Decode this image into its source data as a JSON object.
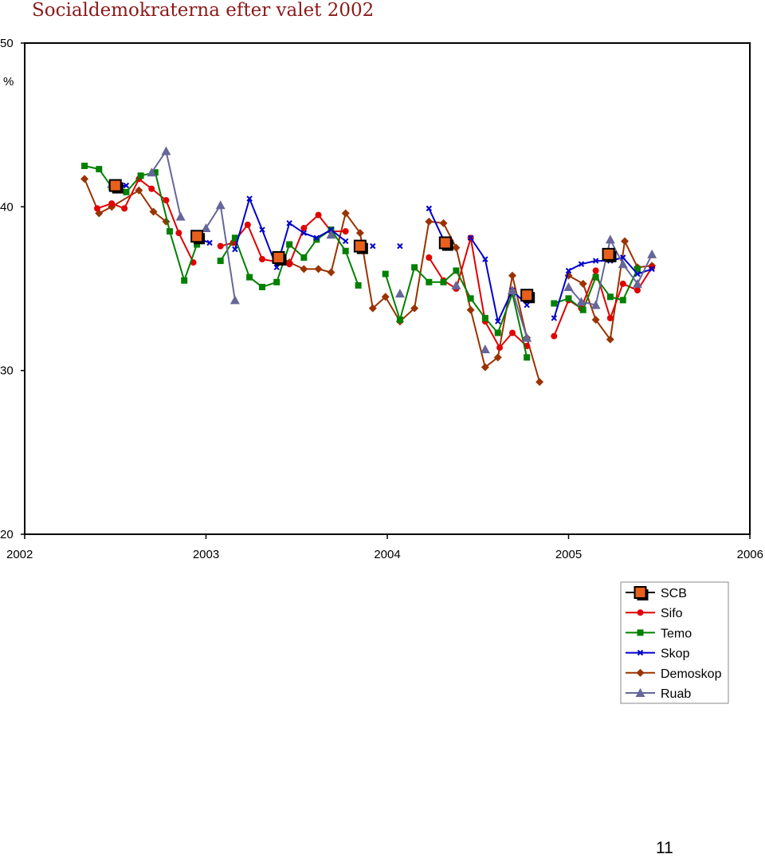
{
  "chart_data": {
    "type": "line",
    "title": "Socialdemokraterna efter valet 2002",
    "ylabel": "%",
    "xlabel": "",
    "ylim": [
      20,
      50
    ],
    "xlim": [
      2002,
      2006
    ],
    "yticks": [
      20,
      30,
      40,
      50
    ],
    "xticks": [
      2002,
      2003,
      2004,
      2005,
      2006
    ],
    "grid": false,
    "legend": "bottom-right",
    "series": [
      {
        "name": "SCB",
        "color": "#e8601c",
        "marker": "big-square",
        "points": [
          [
            2002.5,
            41.3
          ],
          [
            2002.95,
            38.2
          ],
          [
            2003.4,
            36.9
          ],
          [
            2003.85,
            37.6
          ],
          [
            2004.32,
            37.8
          ],
          [
            2004.77,
            34.6
          ],
          [
            2005.22,
            37.1
          ]
        ]
      },
      {
        "name": "Sifo",
        "color": "#e00000",
        "marker": "circle",
        "points": [
          [
            2002.4,
            39.9
          ],
          [
            2002.48,
            40.2
          ],
          [
            2002.55,
            39.9
          ],
          [
            2002.63,
            41.7
          ],
          [
            2002.7,
            41.1
          ],
          [
            2002.78,
            40.4
          ],
          [
            2002.85,
            38.4
          ],
          [
            2002.93,
            36.6
          ],
          [
            null,
            null
          ],
          [
            2003.08,
            37.6
          ],
          [
            2003.15,
            37.8
          ],
          [
            2003.23,
            38.9
          ],
          [
            2003.31,
            36.8
          ],
          [
            2003.46,
            36.5
          ],
          [
            2003.54,
            38.7
          ],
          [
            2003.62,
            39.5
          ],
          [
            2003.69,
            38.5
          ],
          [
            2003.77,
            38.5
          ],
          [
            null,
            null
          ],
          [
            2004.23,
            36.9
          ],
          [
            2004.31,
            35.5
          ],
          [
            2004.38,
            35.0
          ],
          [
            2004.46,
            38.1
          ],
          [
            2004.54,
            33.0
          ],
          [
            2004.62,
            31.4
          ],
          [
            2004.69,
            32.3
          ],
          [
            2004.77,
            31.5
          ],
          [
            null,
            null
          ],
          [
            2004.92,
            32.1
          ],
          [
            2005.0,
            34.3
          ],
          [
            2005.07,
            33.8
          ],
          [
            2005.15,
            36.1
          ],
          [
            2005.23,
            33.2
          ],
          [
            2005.3,
            35.3
          ],
          [
            2005.38,
            34.9
          ],
          [
            2005.46,
            36.3
          ]
        ]
      },
      {
        "name": "Temo",
        "color": "#008000",
        "marker": "square",
        "points": [
          [
            2002.33,
            42.5
          ],
          [
            2002.41,
            42.3
          ],
          [
            2002.48,
            41.2
          ],
          [
            2002.56,
            40.9
          ],
          [
            2002.64,
            41.9
          ],
          [
            2002.72,
            42.1
          ],
          [
            2002.8,
            38.5
          ],
          [
            2002.88,
            35.5
          ],
          [
            2002.95,
            37.7
          ],
          [
            null,
            null
          ],
          [
            2003.08,
            36.7
          ],
          [
            2003.16,
            38.1
          ],
          [
            2003.24,
            35.7
          ],
          [
            2003.31,
            35.1
          ],
          [
            2003.39,
            35.4
          ],
          [
            2003.46,
            37.7
          ],
          [
            2003.54,
            36.9
          ],
          [
            2003.61,
            38.0
          ],
          [
            2003.69,
            38.6
          ],
          [
            2003.77,
            37.3
          ],
          [
            2003.84,
            35.2
          ],
          [
            null,
            null
          ],
          [
            2003.99,
            35.9
          ],
          [
            2004.07,
            33.1
          ],
          [
            2004.15,
            36.3
          ],
          [
            2004.23,
            35.4
          ],
          [
            2004.31,
            35.4
          ],
          [
            2004.38,
            36.1
          ],
          [
            2004.46,
            34.4
          ],
          [
            2004.54,
            33.2
          ],
          [
            2004.61,
            32.3
          ],
          [
            2004.69,
            34.7
          ],
          [
            2004.77,
            30.8
          ],
          [
            null,
            null
          ],
          [
            2004.92,
            34.1
          ],
          [
            2005.0,
            34.4
          ],
          [
            2005.08,
            33.7
          ],
          [
            2005.15,
            35.7
          ],
          [
            2005.23,
            34.5
          ],
          [
            2005.3,
            34.3
          ],
          [
            2005.38,
            36.2
          ]
        ]
      },
      {
        "name": "Skop",
        "color": "#0000cc",
        "marker": "x",
        "points": [
          [
            2002.48,
            41.2
          ],
          [
            2002.56,
            41.3
          ],
          [
            null,
            null
          ],
          [
            2002.95,
            38.1
          ],
          [
            2003.02,
            37.8
          ],
          [
            null,
            null
          ],
          [
            2003.16,
            37.4
          ],
          [
            2003.24,
            40.5
          ],
          [
            2003.31,
            38.6
          ],
          [
            2003.39,
            36.3
          ],
          [
            2003.46,
            39.0
          ],
          [
            2003.54,
            38.4
          ],
          [
            2003.61,
            38.1
          ],
          [
            2003.69,
            38.6
          ],
          [
            2003.77,
            37.9
          ],
          [
            null,
            null
          ],
          [
            2003.92,
            37.6
          ],
          [
            null,
            null
          ],
          [
            2004.07,
            37.6
          ],
          [
            null,
            null
          ],
          [
            2004.23,
            39.9
          ],
          [
            2004.31,
            38.0
          ],
          [
            null,
            null
          ],
          [
            2004.46,
            38.1
          ],
          [
            2004.54,
            36.8
          ],
          [
            2004.61,
            33.0
          ],
          [
            2004.69,
            34.9
          ],
          [
            2004.77,
            34.0
          ],
          [
            null,
            null
          ],
          [
            2004.92,
            33.2
          ],
          [
            2005.0,
            36.1
          ],
          [
            2005.07,
            36.5
          ],
          [
            2005.15,
            36.7
          ],
          [
            2005.23,
            36.7
          ],
          [
            2005.3,
            36.9
          ],
          [
            2005.38,
            35.9
          ],
          [
            2005.46,
            36.2
          ]
        ]
      },
      {
        "name": "Demoskop",
        "color": "#993300",
        "marker": "diamond",
        "points": [
          [
            2002.33,
            41.7
          ],
          [
            2002.41,
            39.6
          ],
          [
            2002.48,
            40.0
          ],
          [
            2002.63,
            41.0
          ],
          [
            2002.71,
            39.7
          ],
          [
            2002.78,
            39.1
          ],
          [
            null,
            null
          ],
          [
            2003.43,
            36.7
          ],
          [
            2003.46,
            36.6
          ],
          [
            2003.54,
            36.2
          ],
          [
            2003.62,
            36.2
          ],
          [
            2003.69,
            36.0
          ],
          [
            2003.77,
            39.6
          ],
          [
            2003.85,
            38.4
          ],
          [
            2003.92,
            33.8
          ],
          [
            2003.99,
            34.5
          ],
          [
            2004.07,
            33.0
          ],
          [
            2004.15,
            33.8
          ],
          [
            2004.23,
            39.1
          ],
          [
            2004.31,
            39.0
          ],
          [
            2004.38,
            37.5
          ],
          [
            2004.46,
            33.7
          ],
          [
            2004.54,
            30.2
          ],
          [
            2004.61,
            30.8
          ],
          [
            2004.69,
            35.8
          ],
          [
            2004.77,
            32.0
          ],
          [
            2004.84,
            29.3
          ],
          [
            null,
            null
          ],
          [
            2005.0,
            35.8
          ],
          [
            2005.08,
            35.3
          ],
          [
            2005.15,
            33.1
          ],
          [
            2005.23,
            31.9
          ],
          [
            2005.31,
            37.9
          ],
          [
            2005.38,
            36.3
          ],
          [
            2005.46,
            36.4
          ]
        ]
      },
      {
        "name": "Ruab",
        "color": "#666699",
        "marker": "triangle",
        "points": [
          [
            2002.48,
            41.4
          ],
          [
            null,
            null
          ],
          [
            2002.7,
            42.1
          ],
          [
            2002.78,
            43.4
          ],
          [
            2002.86,
            39.4
          ],
          [
            null,
            null
          ],
          [
            2003.0,
            38.7
          ],
          [
            2003.08,
            40.1
          ],
          [
            2003.16,
            34.3
          ],
          [
            null,
            null
          ],
          [
            2003.69,
            38.3
          ],
          [
            null,
            null
          ],
          [
            2004.07,
            34.7
          ],
          [
            null,
            null
          ],
          [
            2004.38,
            35.2
          ],
          [
            null,
            null
          ],
          [
            2004.54,
            31.3
          ],
          [
            null,
            null
          ],
          [
            2004.69,
            34.9
          ],
          [
            2004.77,
            32.0
          ],
          [
            null,
            null
          ],
          [
            2005.0,
            35.1
          ],
          [
            2005.07,
            34.2
          ],
          [
            2005.15,
            34.0
          ],
          [
            2005.23,
            38.0
          ],
          [
            2005.3,
            36.5
          ],
          [
            2005.38,
            35.3
          ],
          [
            2005.46,
            37.1
          ]
        ]
      }
    ]
  },
  "page_number": "11"
}
